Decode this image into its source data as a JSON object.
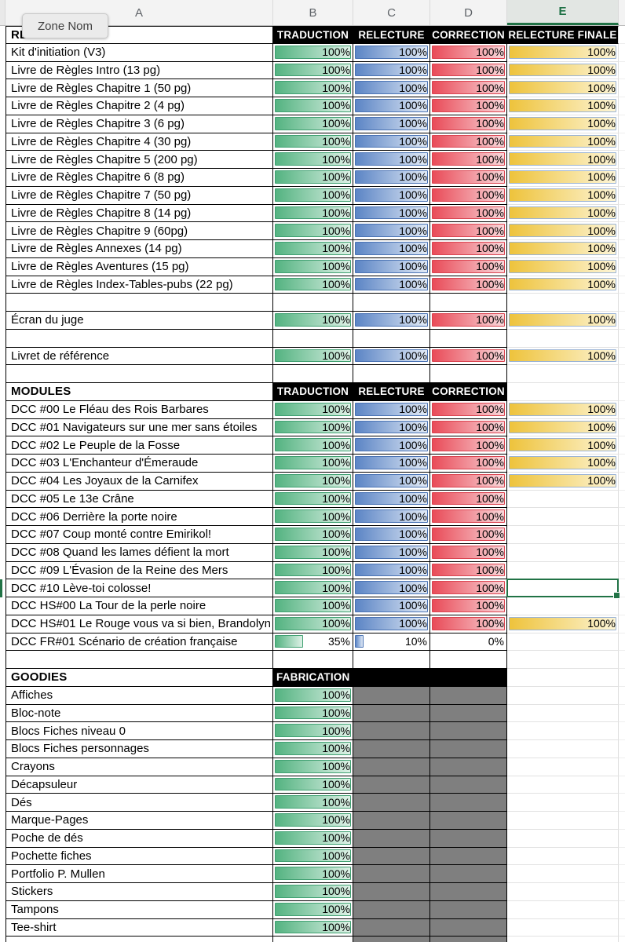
{
  "name_box": {
    "tooltip": "Zone Nom"
  },
  "column_headers": {
    "letters": [
      "A",
      "B",
      "C",
      "D",
      "E"
    ],
    "selected": "E"
  },
  "colors": {
    "selection_green": "#217346",
    "header_black": "#000000",
    "disabled_gray": "#7f7f7f",
    "bar_green": "#54b381",
    "bar_blue": "#5c85c5",
    "bar_red": "#e94b58",
    "bar_yellow": "#eec33c",
    "bar_yellow_border": "#9ab3d5"
  },
  "sections": [
    {
      "name": "RÈGLES",
      "header": {
        "b": "TRADUCTION",
        "c": "RELECTURE",
        "d": "CORRECTION",
        "e": "RELECTURE FINALE"
      },
      "rows": [
        {
          "label": "Kit d'initiation (V3)",
          "b": 100,
          "c": 100,
          "d": 100,
          "e": 100
        },
        {
          "label": "Livre de Règles Intro (13 pg)",
          "b": 100,
          "c": 100,
          "d": 100,
          "e": 100
        },
        {
          "label": "Livre de Règles Chapitre 1 (50 pg)",
          "b": 100,
          "c": 100,
          "d": 100,
          "e": 100
        },
        {
          "label": "Livre de Règles Chapitre 2 (4 pg)",
          "b": 100,
          "c": 100,
          "d": 100,
          "e": 100
        },
        {
          "label": "Livre de Règles Chapitre 3 (6 pg)",
          "b": 100,
          "c": 100,
          "d": 100,
          "e": 100
        },
        {
          "label": "Livre de Règles Chapitre 4 (30 pg)",
          "b": 100,
          "c": 100,
          "d": 100,
          "e": 100
        },
        {
          "label": "Livre de Règles Chapitre 5 (200 pg)",
          "b": 100,
          "c": 100,
          "d": 100,
          "e": 100
        },
        {
          "label": "Livre de Règles Chapitre 6 (8 pg)",
          "b": 100,
          "c": 100,
          "d": 100,
          "e": 100
        },
        {
          "label": "Livre de Règles Chapitre 7 (50 pg)",
          "b": 100,
          "c": 100,
          "d": 100,
          "e": 100
        },
        {
          "label": "Livre de Règles Chapitre 8 (14 pg)",
          "b": 100,
          "c": 100,
          "d": 100,
          "e": 100
        },
        {
          "label": "Livre de Règles Chapitre 9 (60pg)",
          "b": 100,
          "c": 100,
          "d": 100,
          "e": 100
        },
        {
          "label": "Livre de Règles Annexes (14 pg)",
          "b": 100,
          "c": 100,
          "d": 100,
          "e": 100
        },
        {
          "label": "Livre de Règles Aventures (15 pg)",
          "b": 100,
          "c": 100,
          "d": 100,
          "e": 100
        },
        {
          "label": "Livre de Règles Index-Tables-pubs (22 pg)",
          "b": 100,
          "c": 100,
          "d": 100,
          "e": 100
        },
        {
          "blank": true
        },
        {
          "label": "Écran du juge",
          "b": 100,
          "c": 100,
          "d": 100,
          "e": 100
        },
        {
          "blank": true
        },
        {
          "label": "Livret de référence",
          "b": 100,
          "c": 100,
          "d": 100,
          "e": 100
        },
        {
          "blank": true
        }
      ]
    },
    {
      "name": "MODULES",
      "header": {
        "b": "TRADUCTION",
        "c": "RELECTURE",
        "d": "CORRECTION"
      },
      "rows": [
        {
          "label": "DCC #00 Le Fléau des Rois Barbares",
          "b": 100,
          "c": 100,
          "d": 100,
          "e": 100
        },
        {
          "label": "DCC #01 Navigateurs sur une mer sans étoiles",
          "b": 100,
          "c": 100,
          "d": 100,
          "e": 100
        },
        {
          "label": "DCC #02 Le Peuple de la Fosse",
          "b": 100,
          "c": 100,
          "d": 100,
          "e": 100
        },
        {
          "label": "DCC #03 L'Enchanteur d'Émeraude",
          "b": 100,
          "c": 100,
          "d": 100,
          "e": 100
        },
        {
          "label": "DCC #04 Les Joyaux de la Carnifex",
          "b": 100,
          "c": 100,
          "d": 100,
          "e": 100
        },
        {
          "label": "DCC #05 Le 13e Crâne",
          "b": 100,
          "c": 100,
          "d": 100
        },
        {
          "label": "DCC #06 Derrière la porte noire",
          "b": 100,
          "c": 100,
          "d": 100
        },
        {
          "label": "DCC #07 Coup monté contre Emirikol!",
          "b": 100,
          "c": 100,
          "d": 100
        },
        {
          "label": "DCC #08 Quand les lames défient la mort",
          "b": 100,
          "c": 100,
          "d": 100
        },
        {
          "label": "DCC #09 L'Évasion de la Reine des Mers",
          "b": 100,
          "c": 100,
          "d": 100
        },
        {
          "label": "DCC #10 Lève-toi colosse!",
          "b": 100,
          "c": 100,
          "d": 100,
          "sel": "e"
        },
        {
          "label": "DCC HS#00 La Tour de la perle noire",
          "b": 100,
          "c": 100,
          "d": 100
        },
        {
          "label": "DCC HS#01 Le Rouge vous va si bien, Brandolyn",
          "b": 100,
          "c": 100,
          "d": 100,
          "e": 100
        },
        {
          "label": "DCC FR#01 Scénario de création française",
          "b": 35,
          "c": 10,
          "d": 0
        },
        {
          "blank": true
        }
      ]
    },
    {
      "name": "GOODIES",
      "header": {
        "b": "FABRICATION",
        "c": "",
        "d": ""
      },
      "header_align": "left",
      "rows": [
        {
          "label": "Affiches",
          "b": 100,
          "c": "gray",
          "d": "gray"
        },
        {
          "label": "Bloc-note",
          "b": 100,
          "c": "gray",
          "d": "gray"
        },
        {
          "label": "Blocs Fiches niveau 0",
          "b": 100,
          "c": "gray",
          "d": "gray"
        },
        {
          "label": "Blocs Fiches personnages",
          "b": 100,
          "c": "gray",
          "d": "gray"
        },
        {
          "label": "Crayons",
          "b": 100,
          "c": "gray",
          "d": "gray"
        },
        {
          "label": "Décapsuleur",
          "b": 100,
          "c": "gray",
          "d": "gray"
        },
        {
          "label": "Dés",
          "b": 100,
          "c": "gray",
          "d": "gray"
        },
        {
          "label": "Marque-Pages",
          "b": 100,
          "c": "gray",
          "d": "gray"
        },
        {
          "label": "Poche de dés",
          "b": 100,
          "c": "gray",
          "d": "gray"
        },
        {
          "label": "Pochette fiches",
          "b": 100,
          "c": "gray",
          "d": "gray"
        },
        {
          "label": "Portfolio P. Mullen",
          "b": 100,
          "c": "gray",
          "d": "gray"
        },
        {
          "label": "Stickers",
          "b": 100,
          "c": "gray",
          "d": "gray"
        },
        {
          "label": "Tampons",
          "b": 100,
          "c": "gray",
          "d": "gray"
        },
        {
          "label": "Tee-shirt",
          "b": 100,
          "c": "gray",
          "d": "gray"
        },
        {
          "blank": true,
          "c": "gray",
          "d": "gray"
        }
      ]
    }
  ]
}
